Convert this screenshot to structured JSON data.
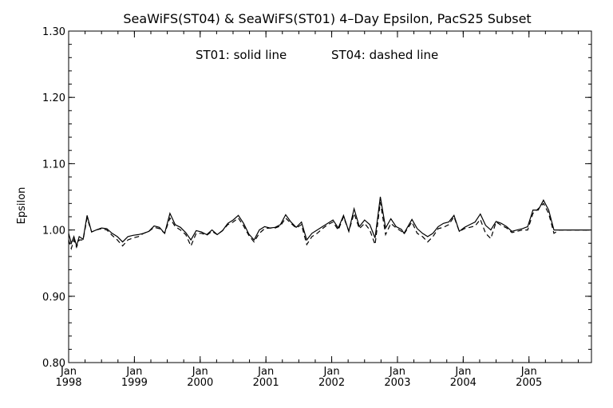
{
  "chart_data": {
    "type": "line",
    "title": "SeaWiFS(ST04) & SeaWiFS(ST01) 4–Day Epsilon, PacS25 Subset",
    "ylabel": "Epsilon",
    "xlabel": "",
    "annotation_left": "ST01: solid line",
    "annotation_right": "ST04: dashed line",
    "ylim": [
      0.8,
      1.3
    ],
    "xlim": [
      1998.0,
      2005.95
    ],
    "yticks": [
      "0.80",
      "0.90",
      "1.00",
      "1.10",
      "1.20",
      "1.30"
    ],
    "xticks": [
      {
        "month": "Jan",
        "year": "1998"
      },
      {
        "month": "Jan",
        "year": "1999"
      },
      {
        "month": "Jan",
        "year": "2000"
      },
      {
        "month": "Jan",
        "year": "2001"
      },
      {
        "month": "Jan",
        "year": "2002"
      },
      {
        "month": "Jan",
        "year": "2003"
      },
      {
        "month": "Jan",
        "year": "2004"
      },
      {
        "month": "Jan",
        "year": "2005"
      }
    ],
    "series": [
      {
        "style": "solid",
        "x": [
          1998.0,
          1998.04,
          1998.08,
          1998.12,
          1998.16,
          1998.22,
          1998.28,
          1998.35,
          1998.42,
          1998.5,
          1998.58,
          1998.66,
          1998.74,
          1998.82,
          1998.9,
          1998.98,
          1999.06,
          1999.14,
          1999.22,
          1999.3,
          1999.38,
          1999.46,
          1999.54,
          1999.62,
          1999.7,
          1999.78,
          1999.86,
          1999.94,
          2000.02,
          2000.1,
          2000.18,
          2000.26,
          2000.34,
          2000.42,
          2000.5,
          2000.58,
          2000.66,
          2000.74,
          2000.82,
          2000.9,
          2000.98,
          2001.06,
          2001.14,
          2001.22,
          2001.3,
          2001.38,
          2001.46,
          2001.54,
          2001.62,
          2001.7,
          2001.78,
          2001.86,
          2001.94,
          2002.02,
          2002.1,
          2002.18,
          2002.26,
          2002.34,
          2002.42,
          2002.5,
          2002.58,
          2002.66,
          2002.74,
          2002.82,
          2002.9,
          2002.98,
          2003.06,
          2003.1,
          2003.14,
          2003.22,
          2003.3,
          2003.38,
          2003.46,
          2003.54,
          2003.62,
          2003.7,
          2003.78,
          2003.86,
          2003.94,
          2004.02,
          2004.1,
          2004.18,
          2004.26,
          2004.34,
          2004.42,
          2004.5,
          2004.58,
          2004.66,
          2004.74,
          2004.82,
          2004.9,
          2004.98,
          2005.06,
          2005.14,
          2005.22,
          2005.3,
          2005.38,
          2005.46,
          2005.54,
          2005.62,
          2005.7,
          2005.78,
          2005.86,
          2005.92
        ],
        "y": [
          0.995,
          0.98,
          0.99,
          0.976,
          0.99,
          0.986,
          1.022,
          0.997,
          1.0,
          1.003,
          1.002,
          0.995,
          0.99,
          0.982,
          0.99,
          0.992,
          0.993,
          0.995,
          0.998,
          1.006,
          1.004,
          0.995,
          1.025,
          1.008,
          1.004,
          0.996,
          0.985,
          0.999,
          0.997,
          0.993,
          1.0,
          0.993,
          0.999,
          1.01,
          1.015,
          1.022,
          1.01,
          0.994,
          0.985,
          1.0,
          1.005,
          1.003,
          1.004,
          1.008,
          1.023,
          1.012,
          1.004,
          1.012,
          0.985,
          0.995,
          1.0,
          1.005,
          1.01,
          1.015,
          1.003,
          1.022,
          0.998,
          1.032,
          1.005,
          1.015,
          1.008,
          0.988,
          1.05,
          1.003,
          1.017,
          1.005,
          1.001,
          0.995,
          1.002,
          1.016,
          1.002,
          0.995,
          0.99,
          0.995,
          1.005,
          1.01,
          1.012,
          1.022,
          0.998,
          1.004,
          1.008,
          1.012,
          1.024,
          1.007,
          1.0,
          1.013,
          1.01,
          1.005,
          0.998,
          1.0,
          1.002,
          1.005,
          1.03,
          1.03,
          1.045,
          1.03,
          1.0,
          1.0,
          1.0,
          1.0,
          1.0,
          1.0,
          1.0,
          1.0
        ],
        "note": "approximate"
      },
      {
        "style": "dashed",
        "x": [
          1998.0,
          1998.04,
          1998.08,
          1998.12,
          1998.16,
          1998.22,
          1998.28,
          1998.35,
          1998.42,
          1998.5,
          1998.58,
          1998.66,
          1998.74,
          1998.82,
          1998.9,
          1998.98,
          1999.06,
          1999.14,
          1999.22,
          1999.3,
          1999.38,
          1999.46,
          1999.54,
          1999.62,
          1999.7,
          1999.78,
          1999.86,
          1999.94,
          2000.02,
          2000.1,
          2000.18,
          2000.26,
          2000.34,
          2000.42,
          2000.5,
          2000.58,
          2000.66,
          2000.74,
          2000.82,
          2000.9,
          2000.98,
          2001.06,
          2001.14,
          2001.22,
          2001.3,
          2001.38,
          2001.46,
          2001.54,
          2001.62,
          2001.7,
          2001.78,
          2001.86,
          2001.94,
          2002.02,
          2002.1,
          2002.18,
          2002.26,
          2002.34,
          2002.42,
          2002.5,
          2002.58,
          2002.66,
          2002.74,
          2002.82,
          2002.9,
          2002.98,
          2003.06,
          2003.1,
          2003.14,
          2003.22,
          2003.3,
          2003.38,
          2003.46,
          2003.54,
          2003.62,
          2003.7,
          2003.78,
          2003.86,
          2003.94,
          2004.02,
          2004.1,
          2004.18,
          2004.26,
          2004.34,
          2004.42,
          2004.5,
          2004.58,
          2004.66,
          2004.74,
          2004.82,
          2004.9,
          2004.98,
          2005.06,
          2005.14,
          2005.22,
          2005.3,
          2005.38,
          2005.46,
          2005.54,
          2005.62,
          2005.7,
          2005.78,
          2005.86,
          2005.92
        ],
        "y": [
          0.985,
          0.972,
          0.985,
          0.974,
          0.985,
          0.985,
          1.018,
          0.997,
          1.0,
          1.002,
          1.0,
          0.992,
          0.985,
          0.976,
          0.985,
          0.988,
          0.99,
          0.995,
          0.998,
          1.004,
          1.002,
          0.995,
          1.018,
          1.005,
          1.0,
          0.993,
          0.976,
          0.995,
          0.995,
          0.992,
          0.998,
          0.993,
          0.999,
          1.008,
          1.012,
          1.018,
          1.006,
          0.992,
          0.982,
          0.995,
          1.002,
          1.003,
          1.003,
          1.006,
          1.018,
          1.01,
          1.003,
          1.008,
          0.978,
          0.99,
          0.995,
          1.002,
          1.008,
          1.012,
          1.0,
          1.02,
          0.998,
          1.025,
          1.002,
          1.01,
          1.0,
          0.978,
          1.042,
          0.993,
          1.01,
          1.003,
          0.998,
          0.994,
          1.0,
          1.012,
          0.995,
          0.99,
          0.982,
          0.99,
          1.002,
          1.004,
          1.008,
          1.02,
          0.998,
          1.002,
          1.004,
          1.006,
          1.016,
          0.995,
          0.987,
          1.012,
          1.007,
          1.003,
          0.996,
          0.998,
          1.0,
          1.0,
          1.025,
          1.032,
          1.04,
          1.025,
          0.995,
          1.0,
          1.0,
          1.0,
          1.0,
          1.0,
          1.0,
          1.0
        ],
        "note": "approximate"
      }
    ],
    "grid": false,
    "colors": {
      "line": "#000000",
      "axis": "#000000",
      "background": "#ffffff"
    }
  }
}
